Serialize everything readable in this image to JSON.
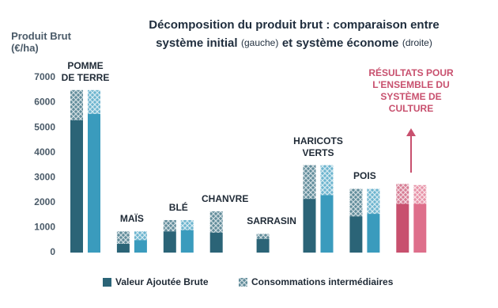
{
  "chart_data": {
    "type": "bar",
    "stacked": true,
    "title_parts": [
      "Décomposition du produit brut : comparaison entre",
      "système initial",
      "(gauche)",
      "et système économe",
      "(droite)"
    ],
    "y_label": "Produit Brut\n(€/ha)",
    "annotation": "RÉSULTATS POUR\nL'ENSEMBLE DU\nSYSTÈME DE CULTURE",
    "categories": [
      "POMME\nDE TERRE",
      "MAÏS",
      "BLÉ",
      "CHANVRE",
      "SARRASIN",
      "HARICOTS\nVERTS",
      "POIS",
      null
    ],
    "colors": {
      "initial": "#2b6477",
      "econome": "#3a9bbd",
      "highlight_initial": "#c8506e",
      "highlight_econome": "#de6f8b"
    },
    "highlight_index": 7,
    "series": [
      {
        "name": "Valeur Ajoutée Brute",
        "pattern": "solid",
        "initial": [
          5300,
          350,
          850,
          800,
          550,
          2150,
          1450,
          1950
        ],
        "econome": [
          5550,
          500,
          900,
          null,
          null,
          2300,
          1550,
          1950
        ]
      },
      {
        "name": "Consommations intermédiaires",
        "pattern": "hatch",
        "initial": [
          1200,
          500,
          450,
          850,
          200,
          1350,
          1100,
          800
        ],
        "econome": [
          950,
          350,
          400,
          null,
          null,
          1200,
          1000,
          750
        ]
      }
    ],
    "ylim": [
      0,
      7000
    ],
    "yticks": [
      0,
      1000,
      2000,
      3000,
      4000,
      5000,
      6000,
      7000
    ],
    "grid": false
  }
}
